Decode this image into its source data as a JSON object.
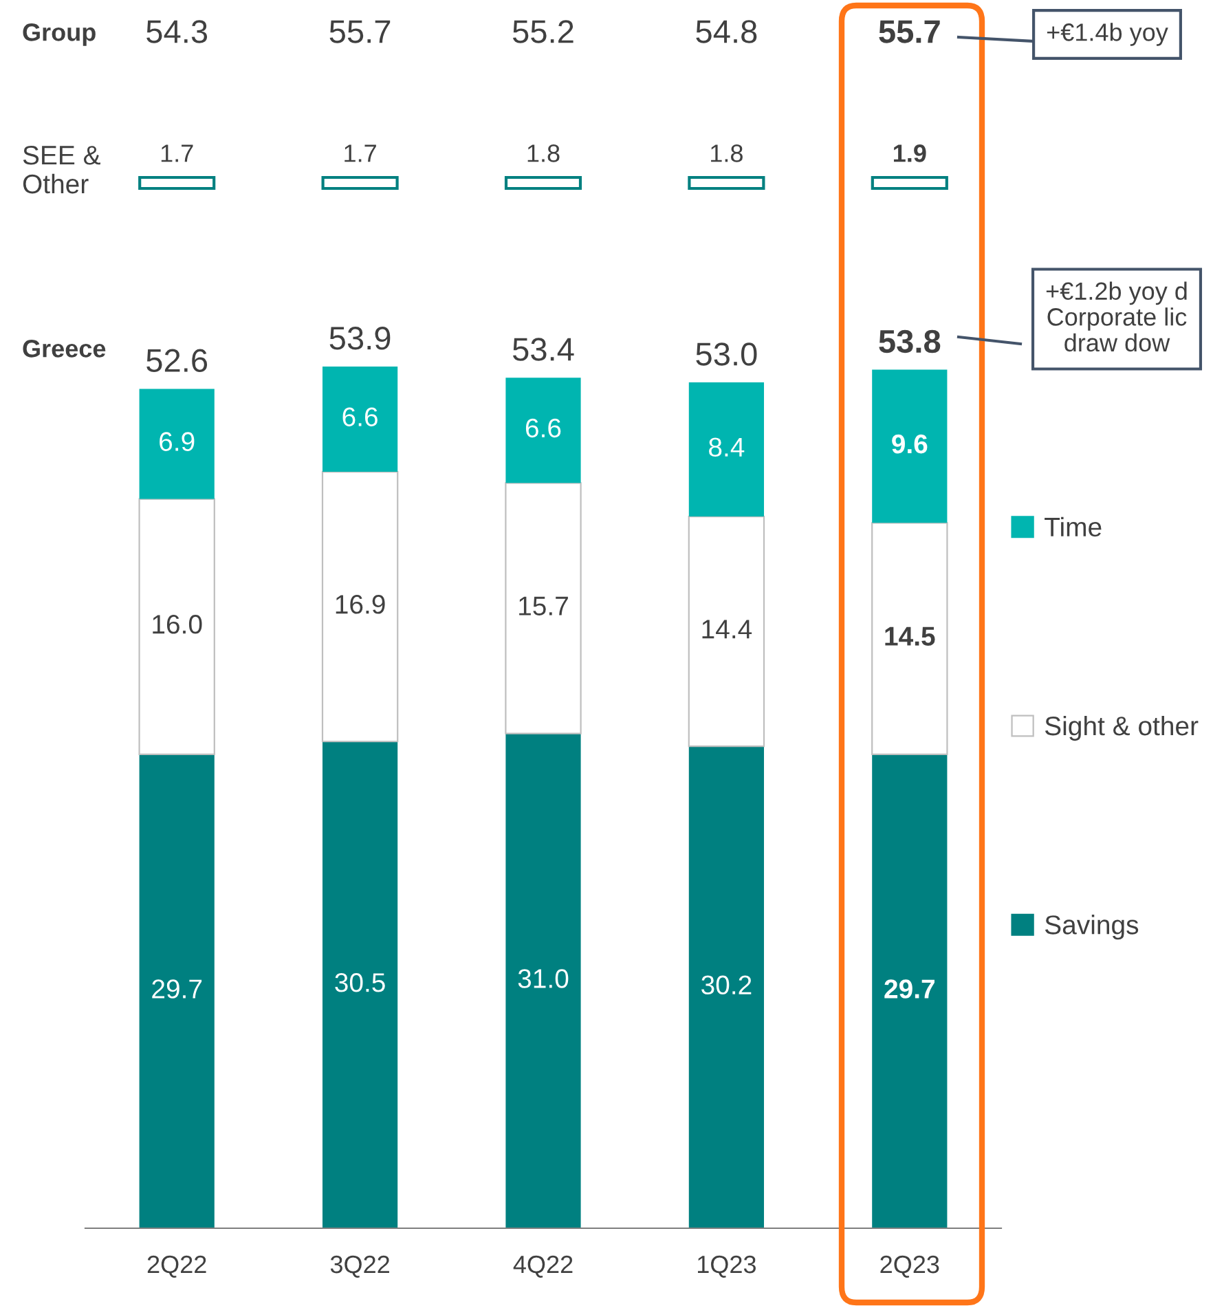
{
  "chart_data": {
    "type": "bar",
    "stacked": true,
    "categories": [
      "2Q22",
      "3Q22",
      "4Q22",
      "1Q23",
      "2Q23"
    ],
    "series": [
      {
        "name": "Savings",
        "color": "#008080",
        "values": [
          29.7,
          30.5,
          31.0,
          30.2,
          29.7
        ],
        "value_labels": [
          "29.7",
          "30.5",
          "31.0",
          "30.2",
          "29.7"
        ]
      },
      {
        "name": "Sight & other",
        "color": "#ffffff",
        "values": [
          16.0,
          16.9,
          15.7,
          14.4,
          14.5
        ],
        "value_labels": [
          "16.0",
          "16.9",
          "15.7",
          "14.4",
          "14.5"
        ]
      },
      {
        "name": "Time",
        "color": "#00b5b0",
        "values": [
          6.9,
          6.6,
          6.6,
          8.4,
          9.6
        ],
        "value_labels": [
          "6.9",
          "6.6",
          "6.6",
          "8.4",
          "9.6"
        ]
      }
    ],
    "totals": [
      "52.6",
      "53.9",
      "53.4",
      "53.0",
      "53.8"
    ],
    "legend": "right",
    "tick_labels": "x",
    "annotations": [
      "Group",
      "SEE &\nOther",
      "Greece",
      "+€1.4b yoy",
      "+€1.2b yoy d\nCorporate lic\ndraw dow",
      "54.3",
      "55.7",
      "55.2",
      "54.8",
      "55.7",
      "1.7",
      "1.7",
      "1.8",
      "1.8",
      "1.9"
    ]
  }
}
